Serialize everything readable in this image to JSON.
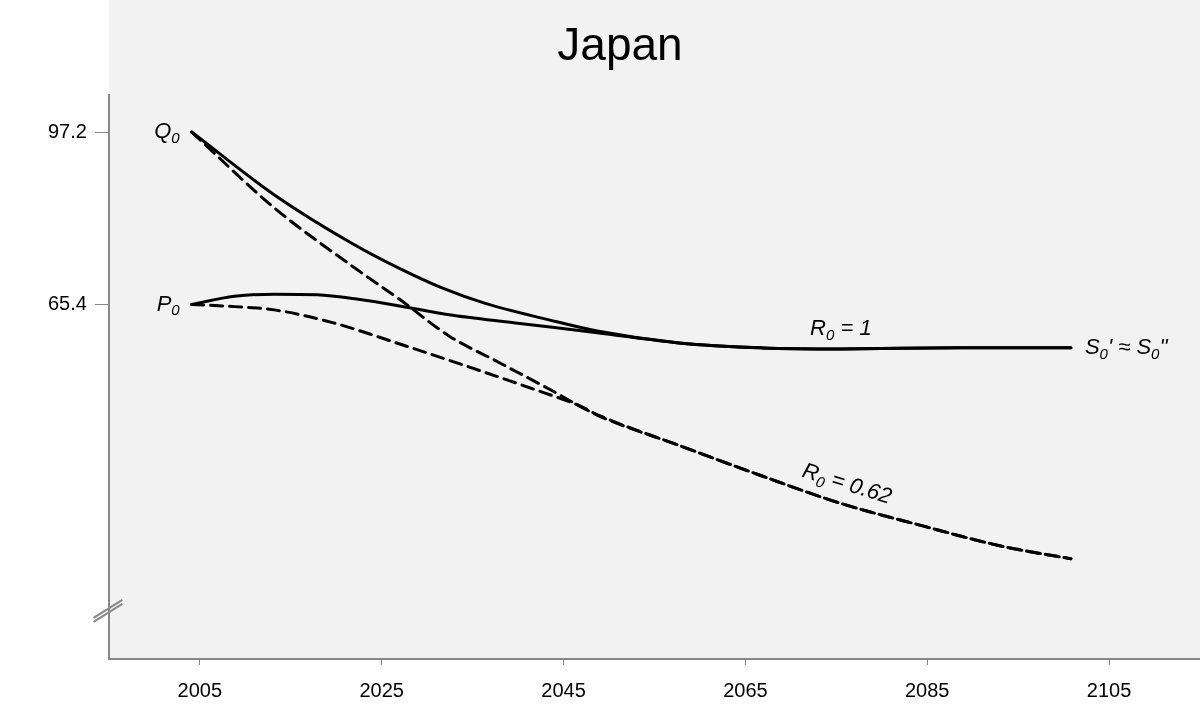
{
  "chart_data": {
    "type": "line",
    "title": "Japan",
    "xlim": [
      1995,
      2115
    ],
    "xticks": [
      2005,
      2025,
      2045,
      2065,
      2085,
      2105
    ],
    "ylim": [
      0,
      104
    ],
    "yticks": [
      65.4,
      97.2
    ],
    "marker": "none",
    "series": [
      {
        "color": "#000000",
        "line_style": "solid",
        "x": [
          2004.1,
          2013.2,
          2021.9,
          2027.0,
          2031.7,
          2036.4,
          2043.3,
          2048.7,
          2057.7,
          2066.6,
          2075.5,
          2088.8,
          2100.8
        ],
        "values": [
          97.2,
          85.6,
          76.5,
          72.0,
          68.4,
          65.6,
          62.6,
          60.5,
          58.3,
          57.4,
          57.2,
          57.4,
          57.4
        ]
      },
      {
        "color": "#000000",
        "line_style": "solid",
        "x": [
          2004.1,
          2008.8,
          2013.2,
          2017.9,
          2022.6,
          2027.7,
          2032.4,
          2039.7,
          2048.7,
          2057.7,
          2066.6,
          2075.5,
          2088.8,
          2100.8
        ],
        "values": [
          65.4,
          66.9,
          67.3,
          67.2,
          66.3,
          64.9,
          63.5,
          62.0,
          60.2,
          58.3,
          57.4,
          57.2,
          57.4,
          57.4
        ]
      },
      {
        "color": "#000000",
        "line_style": "dashed",
        "x": [
          2004.1,
          2013.2,
          2021.9,
          2027.0,
          2032.4,
          2037.9,
          2043.3,
          2048.7,
          2057.7,
          2066.6,
          2075.5,
          2084.4,
          2093.2,
          2100.8
        ],
        "values": [
          97.2,
          83.2,
          72.3,
          66.3,
          59.6,
          54.7,
          49.9,
          45.0,
          39.4,
          33.9,
          28.7,
          24.6,
          20.8,
          18.5
        ]
      },
      {
        "color": "#000000",
        "line_style": "dashed",
        "x": [
          2004.1,
          2008.8,
          2013.2,
          2019.7,
          2027.0,
          2034.2,
          2041.5,
          2046.9,
          2048.8,
          2057.7,
          2066.6,
          2075.5,
          2084.4,
          2093.2,
          2100.8
        ],
        "values": [
          65.4,
          65.0,
          64.4,
          62.0,
          58.1,
          54.1,
          49.9,
          46.6,
          45.0,
          39.4,
          33.9,
          28.7,
          24.6,
          20.8,
          18.5
        ]
      }
    ],
    "annotations": [
      {
        "text": "Q$_{0}$",
        "x": 2004.1,
        "y": 97.2
      },
      {
        "text": "P$_{0}$",
        "x": 2004.1,
        "y": 65.4
      },
      {
        "text": "R$_{0}$ = 1",
        "x": 2075.5,
        "y": 57.2
      },
      {
        "text": "S$_{0}$' ≈ S$_{0}$''",
        "x": 2100.8,
        "y": 57.4
      },
      {
        "text": "R$_{0}$ = 0.62",
        "x": 2075.5,
        "y": 28.7
      }
    ]
  }
}
